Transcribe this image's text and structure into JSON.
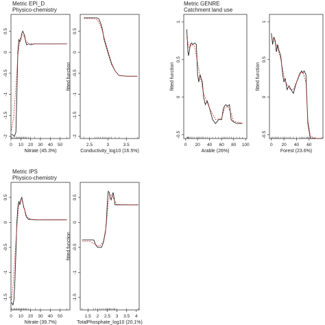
{
  "groups": [
    {
      "metric": "Metric EPI_D",
      "category": "Physico-chemistry"
    },
    {
      "metric": "Metric GENRE",
      "category": "Catchment land use"
    },
    {
      "metric": "Metric IPS",
      "category": "Physico-chemistry"
    }
  ],
  "colors": {
    "fitted": "#222222",
    "smooth": "#d62728",
    "axis": "#333333"
  },
  "chart_data": [
    {
      "type": "line",
      "group": "Metric EPI_D",
      "xlabel": "Nitrate (45.3%)",
      "ylabel": "",
      "xlim": [
        0,
        60
      ],
      "ylim": [
        -2.05,
        0.9
      ],
      "xticks": [
        0,
        10,
        20,
        30,
        40,
        50
      ],
      "yticks": [
        -2.0,
        -1.5,
        -1.0,
        -0.5,
        0.0,
        0.5
      ],
      "rug": true,
      "series": [
        {
          "style": "solid",
          "x": [
            0.5,
            2,
            3.5,
            5,
            6,
            7,
            8,
            9,
            10,
            11,
            12,
            13,
            14,
            15,
            16,
            18,
            20,
            24,
            30,
            40,
            50,
            57
          ],
          "y": [
            -1.95,
            -1.97,
            -2.0,
            -1.9,
            -1.0,
            0.0,
            0.3,
            0.25,
            0.3,
            0.45,
            0.5,
            0.45,
            0.38,
            0.25,
            0.18,
            0.2,
            0.18,
            0.2,
            0.2,
            0.2,
            0.2,
            0.2
          ]
        },
        {
          "style": "dashed",
          "x": [
            0.5,
            3,
            5,
            7,
            9,
            11,
            13,
            15,
            18,
            22,
            30,
            40,
            57
          ],
          "y": [
            -1.85,
            -1.5,
            -0.8,
            -0.1,
            0.3,
            0.42,
            0.4,
            0.28,
            0.2,
            0.2,
            0.2,
            0.2,
            0.2
          ]
        }
      ]
    },
    {
      "type": "line",
      "group": "Metric EPI_D",
      "xlabel": "Conductivity_log10 (16.5%)",
      "ylabel": "fitted function",
      "xlim": [
        2.25,
        3.85
      ],
      "ylim": [
        -2.05,
        0.9
      ],
      "xticks": [
        2.5,
        3.0,
        3.5
      ],
      "yticks": [
        -2.0,
        -1.5,
        -1.0,
        -0.5,
        0.0,
        0.5
      ],
      "rug": true,
      "series": [
        {
          "style": "solid",
          "x": [
            2.35,
            2.5,
            2.65,
            2.7,
            2.75,
            2.8,
            2.85,
            2.9,
            2.95,
            3.0,
            3.05,
            3.1,
            3.2,
            3.3,
            3.5,
            3.8
          ],
          "y": [
            0.82,
            0.82,
            0.82,
            0.82,
            0.8,
            0.7,
            0.55,
            0.3,
            0.15,
            0.0,
            -0.15,
            -0.28,
            -0.45,
            -0.55,
            -0.57,
            -0.57
          ]
        },
        {
          "style": "dashed",
          "x": [
            2.35,
            2.6,
            2.7,
            2.8,
            2.9,
            3.0,
            3.1,
            3.2,
            3.3,
            3.5,
            3.8
          ],
          "y": [
            0.8,
            0.8,
            0.78,
            0.65,
            0.35,
            0.05,
            -0.25,
            -0.45,
            -0.55,
            -0.57,
            -0.57
          ]
        }
      ]
    },
    {
      "type": "line",
      "group": "Metric GENRE",
      "xlabel": "Arable (26%)",
      "ylabel": "fitted function",
      "xlim": [
        -3,
        102
      ],
      "ylim": [
        -0.55,
        1.1
      ],
      "xticks": [
        0,
        20,
        40,
        60,
        80,
        100
      ],
      "yticks": [
        -0.5,
        0.0,
        0.5,
        1.0
      ],
      "rug": true,
      "series": [
        {
          "style": "solid",
          "x": [
            2,
            3,
            4,
            5,
            6,
            8,
            10,
            12,
            15,
            18,
            20,
            22,
            24,
            26,
            28,
            30,
            33,
            36,
            40,
            45,
            50,
            55,
            60,
            63,
            65,
            67,
            70,
            73,
            76,
            80,
            85,
            90,
            95
          ],
          "y": [
            0.9,
            0.75,
            0.6,
            0.55,
            0.6,
            0.7,
            0.72,
            0.7,
            0.72,
            0.7,
            0.3,
            0.2,
            0.3,
            0.25,
            0.2,
            0.0,
            -0.1,
            -0.05,
            -0.15,
            -0.3,
            -0.35,
            -0.3,
            -0.3,
            -0.15,
            -0.12,
            -0.1,
            -0.12,
            -0.1,
            -0.3,
            -0.33,
            -0.35,
            -0.35,
            -0.35
          ]
        },
        {
          "style": "dashed",
          "x": [
            2,
            6,
            10,
            15,
            20,
            25,
            30,
            40,
            50,
            60,
            65,
            70,
            75,
            80,
            95
          ],
          "y": [
            0.8,
            0.65,
            0.7,
            0.68,
            0.45,
            0.25,
            0.05,
            -0.15,
            -0.3,
            -0.28,
            -0.15,
            -0.12,
            -0.2,
            -0.32,
            -0.35
          ]
        }
      ]
    },
    {
      "type": "line",
      "group": "Metric GENRE",
      "xlabel": "Forest (23.6%)",
      "ylabel": "fitted function",
      "xlim": [
        -3,
        82
      ],
      "ylim": [
        -0.55,
        1.1
      ],
      "xticks": [
        0,
        20,
        40,
        60
      ],
      "yticks": [
        -0.5,
        0.0,
        0.5,
        1.0
      ],
      "rug": true,
      "series": [
        {
          "style": "solid",
          "x": [
            0,
            2,
            4,
            6,
            8,
            10,
            12,
            15,
            18,
            20,
            22,
            25,
            28,
            30,
            35,
            40,
            45,
            48,
            50,
            52,
            55,
            57,
            58,
            60,
            62,
            65,
            70,
            80
          ],
          "y": [
            0.85,
            0.7,
            0.8,
            0.75,
            0.6,
            0.7,
            0.62,
            0.55,
            0.3,
            0.2,
            0.25,
            0.1,
            0.15,
            0.12,
            0.05,
            0.2,
            0.3,
            0.35,
            0.32,
            0.35,
            0.3,
            -0.15,
            -0.35,
            -0.45,
            -0.55,
            -0.55,
            -0.55,
            -0.55
          ]
        },
        {
          "style": "dashed",
          "x": [
            0,
            5,
            10,
            15,
            20,
            25,
            30,
            35,
            40,
            45,
            50,
            55,
            58,
            62,
            70,
            80
          ],
          "y": [
            0.8,
            0.75,
            0.66,
            0.5,
            0.28,
            0.16,
            0.1,
            0.1,
            0.2,
            0.32,
            0.33,
            0.2,
            -0.3,
            -0.52,
            -0.55,
            -0.55
          ]
        }
      ]
    },
    {
      "type": "line",
      "group": "Metric IPS",
      "xlabel": "Nitrate (39.7%)",
      "ylabel": "",
      "xlim": [
        0,
        60
      ],
      "ylim": [
        -1.75,
        0.8
      ],
      "xticks": [
        0,
        10,
        20,
        30,
        40,
        50
      ],
      "yticks": [
        -1.5,
        -1.0,
        -0.5,
        0.0,
        0.5
      ],
      "rug": true,
      "series": [
        {
          "style": "solid",
          "x": [
            0.5,
            2,
            3,
            4,
            5,
            6,
            7,
            8,
            9,
            10,
            11,
            12,
            13,
            14,
            15,
            16,
            18,
            20,
            25,
            30,
            40,
            50,
            57
          ],
          "y": [
            -1.6,
            -1.65,
            -1.55,
            -1.2,
            -0.6,
            0.0,
            0.3,
            0.42,
            0.35,
            0.45,
            0.5,
            0.4,
            0.3,
            0.25,
            0.15,
            0.1,
            0.06,
            0.06,
            0.05,
            0.05,
            0.05,
            0.05,
            0.05
          ]
        },
        {
          "style": "dashed",
          "x": [
            0.5,
            2,
            4,
            6,
            8,
            10,
            12,
            14,
            16,
            20,
            30,
            57
          ],
          "y": [
            -1.55,
            -1.3,
            -0.7,
            -0.1,
            0.35,
            0.46,
            0.4,
            0.25,
            0.12,
            0.06,
            0.05,
            0.05
          ]
        }
      ]
    },
    {
      "type": "line",
      "group": "Metric IPS",
      "xlabel": "TotalPhosphate_log10 (20.1%)",
      "ylabel": "fitted function",
      "xlim": [
        1.1,
        4.15
      ],
      "ylim": [
        -1.75,
        0.8
      ],
      "xticks": [
        1.5,
        2.0,
        2.5,
        3.0,
        3.5,
        4.0
      ],
      "yticks": [
        -1.5,
        -1.0,
        -0.5,
        0.0,
        0.5
      ],
      "rug": true,
      "series": [
        {
          "style": "solid",
          "x": [
            1.2,
            1.5,
            1.8,
            1.9,
            2.0,
            2.1,
            2.2,
            2.3,
            2.4,
            2.45,
            2.5,
            2.55,
            2.6,
            2.65,
            2.7,
            2.8,
            2.85,
            2.9,
            3.0,
            3.5,
            4.1
          ],
          "y": [
            -0.35,
            -0.35,
            -0.35,
            -0.45,
            -0.5,
            -0.5,
            -0.5,
            -0.4,
            -0.2,
            0.0,
            0.4,
            0.62,
            0.6,
            0.5,
            0.45,
            0.6,
            0.5,
            0.35,
            0.35,
            0.35,
            0.35
          ]
        },
        {
          "style": "dashed",
          "x": [
            1.2,
            1.6,
            1.9,
            2.1,
            2.3,
            2.45,
            2.55,
            2.65,
            2.75,
            2.85,
            3.0,
            3.5,
            4.1
          ],
          "y": [
            -0.38,
            -0.38,
            -0.45,
            -0.48,
            -0.38,
            -0.05,
            0.4,
            0.55,
            0.55,
            0.45,
            0.36,
            0.35,
            0.35
          ]
        }
      ]
    }
  ]
}
